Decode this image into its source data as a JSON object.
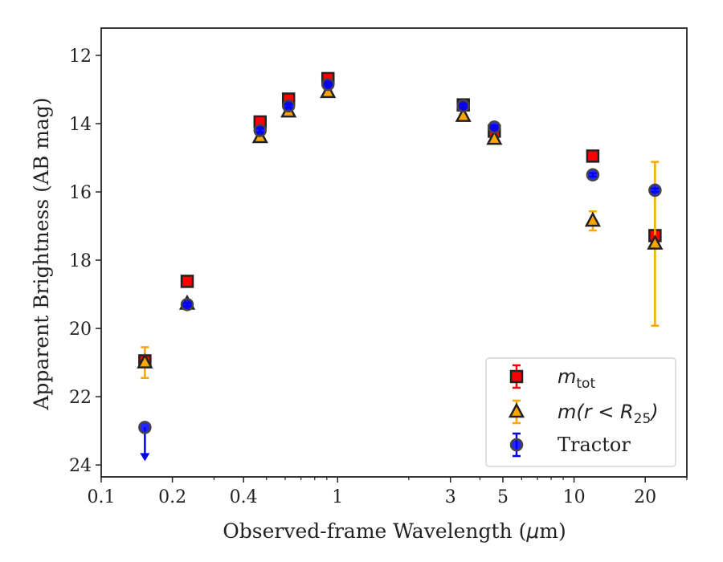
{
  "chart_data": {
    "type": "scatter",
    "xlabel_prefix": "Observed-frame Wavelength (",
    "xlabel_unit_mu": "μ",
    "xlabel_suffix": "m)",
    "ylabel": "Apparent Brightness (AB mag)",
    "x_scale": "log",
    "y_inverted": true,
    "xlim": [
      0.1,
      30
    ],
    "ylim": [
      24.35,
      11.2
    ],
    "x_ticks": [
      {
        "v": 0.1,
        "label": "0.1"
      },
      {
        "v": 0.2,
        "label": "0.2"
      },
      {
        "v": 0.4,
        "label": "0.4"
      },
      {
        "v": 1,
        "label": "1"
      },
      {
        "v": 3,
        "label": "3"
      },
      {
        "v": 5,
        "label": "5"
      },
      {
        "v": 10,
        "label": "10"
      },
      {
        "v": 20,
        "label": "20"
      }
    ],
    "x_minor_ticks": [
      0.3,
      0.5,
      0.6,
      0.7,
      0.8,
      0.9,
      2,
      4,
      6,
      7,
      8,
      9,
      30
    ],
    "y_ticks": [
      {
        "v": 12,
        "label": "12"
      },
      {
        "v": 14,
        "label": "14"
      },
      {
        "v": 16,
        "label": "16"
      },
      {
        "v": 18,
        "label": "18"
      },
      {
        "v": 20,
        "label": "20"
      },
      {
        "v": 22,
        "label": "22"
      },
      {
        "v": 24,
        "label": "24"
      }
    ],
    "grid": false,
    "legend_position": "lower-right",
    "series": [
      {
        "key": "mtot",
        "label_main": "m",
        "label_sub": "tot",
        "marker": "square",
        "face": "#ff0000",
        "edge": "#222222",
        "errcolor": "#ff0000",
        "points": [
          {
            "x": 0.153,
            "y": 20.95,
            "err": 0.1
          },
          {
            "x": 0.231,
            "y": 18.62,
            "err": 0.08
          },
          {
            "x": 0.47,
            "y": 13.95,
            "err": 0.08
          },
          {
            "x": 0.62,
            "y": 13.28,
            "err": 0.05
          },
          {
            "x": 0.91,
            "y": 12.68,
            "err": 0.05
          },
          {
            "x": 3.4,
            "y": 13.45,
            "err": 0.05
          },
          {
            "x": 4.6,
            "y": 14.22,
            "err": 0.05
          },
          {
            "x": 12.0,
            "y": 14.95,
            "err": 0.05
          },
          {
            "x": 22.0,
            "y": 17.28,
            "err": 0.1
          }
        ]
      },
      {
        "key": "mr25",
        "label_main": "m(r < R",
        "label_sub": "25",
        "label_close": ")",
        "marker": "triangle",
        "face": "#ffa500",
        "edge": "#222222",
        "errcolor": "#ffa500",
        "points": [
          {
            "x": 0.153,
            "y": 21.0,
            "err": 0.45
          },
          {
            "x": 0.231,
            "y": 19.28,
            "err": 0.05
          },
          {
            "x": 0.47,
            "y": 14.4,
            "err": 0.05
          },
          {
            "x": 0.62,
            "y": 13.65,
            "err": 0.05
          },
          {
            "x": 0.91,
            "y": 13.08,
            "err": 0.05
          },
          {
            "x": 3.4,
            "y": 13.78,
            "err": 0.05
          },
          {
            "x": 4.6,
            "y": 14.45,
            "err": 0.05
          },
          {
            "x": 12.0,
            "y": 16.85,
            "err": 0.28
          },
          {
            "x": 22.0,
            "y": 17.52,
            "err": 2.4
          }
        ]
      },
      {
        "key": "tractor",
        "label_main": "Tractor",
        "marker": "circle",
        "face": "#0000ff",
        "edge": "#444444",
        "errcolor": "#0000ff",
        "points": [
          {
            "x": 0.153,
            "y": 22.9,
            "upper_limit": true
          },
          {
            "x": 0.231,
            "y": 19.3,
            "err": 0.05
          },
          {
            "x": 0.47,
            "y": 14.2,
            "err": 0.05
          },
          {
            "x": 0.62,
            "y": 13.48,
            "err": 0.05
          },
          {
            "x": 0.91,
            "y": 12.85,
            "err": 0.05
          },
          {
            "x": 3.4,
            "y": 13.48,
            "err": 0.05
          },
          {
            "x": 4.6,
            "y": 14.1,
            "err": 0.05
          },
          {
            "x": 12.0,
            "y": 15.5,
            "err": 0.05
          },
          {
            "x": 22.0,
            "y": 15.95,
            "err": 0.05
          }
        ]
      }
    ]
  }
}
